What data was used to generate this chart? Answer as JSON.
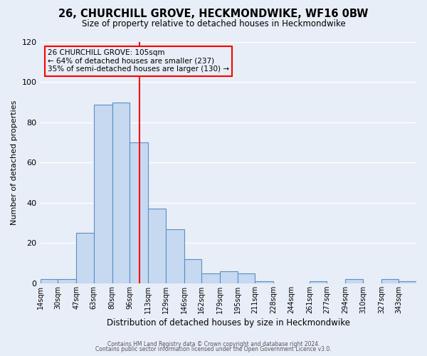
{
  "title": "26, CHURCHILL GROVE, HECKMONDWIKE, WF16 0BW",
  "subtitle": "Size of property relative to detached houses in Heckmondwike",
  "xlabel": "Distribution of detached houses by size in Heckmondwike",
  "ylabel": "Number of detached properties",
  "bin_labels": [
    "14sqm",
    "30sqm",
    "47sqm",
    "63sqm",
    "80sqm",
    "96sqm",
    "113sqm",
    "129sqm",
    "146sqm",
    "162sqm",
    "179sqm",
    "195sqm",
    "211sqm",
    "228sqm",
    "244sqm",
    "261sqm",
    "277sqm",
    "294sqm",
    "310sqm",
    "327sqm",
    "343sqm"
  ],
  "bin_edges": [
    14,
    30,
    47,
    63,
    80,
    96,
    113,
    129,
    146,
    162,
    179,
    195,
    211,
    228,
    244,
    261,
    277,
    294,
    310,
    327,
    343
  ],
  "bar_heights": [
    2,
    2,
    25,
    89,
    90,
    70,
    37,
    27,
    12,
    5,
    6,
    5,
    1,
    0,
    0,
    1,
    0,
    2,
    0,
    2,
    1
  ],
  "bar_color": "#c6d9f1",
  "bar_edge_color": "#5a8fc3",
  "vline_x": 105,
  "vline_color": "red",
  "ylim": [
    0,
    120
  ],
  "yticks": [
    0,
    20,
    40,
    60,
    80,
    100,
    120
  ],
  "annotation_text": "26 CHURCHILL GROVE: 105sqm\n← 64% of detached houses are smaller (237)\n35% of semi-detached houses are larger (130) →",
  "annotation_box_color": "red",
  "footer_line1": "Contains HM Land Registry data © Crown copyright and database right 2024.",
  "footer_line2": "Contains public sector information licensed under the Open Government Licence v3.0.",
  "background_color": "#e8eef7",
  "grid_color": "white"
}
